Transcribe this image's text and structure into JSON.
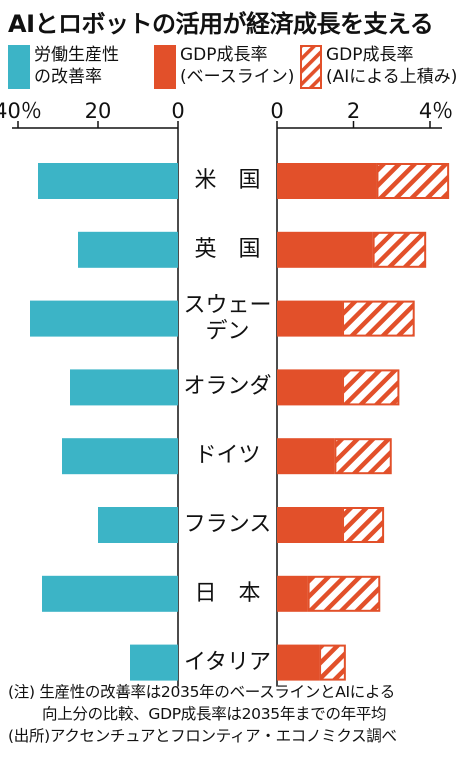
{
  "title": "AIとロボットの活用が経済成長を支える",
  "legend": {
    "labor_line1": "労働生産性",
    "labor_line2": "の改善率",
    "base_line1": "GDP成長率",
    "base_line2": "(ベースライン)",
    "ai_line1": "GDP成長率",
    "ai_line2": "(AIによる上積み)"
  },
  "colors": {
    "labor": "#3cb4c6",
    "gdp": "#e2502a",
    "text": "#111111"
  },
  "notes": {
    "line1": "(注) 生産性の改善率は2035年のベースラインとAIによる",
    "line2": "向上分の比較、GDP成長率は2035年までの年平均",
    "line3": "(出所)アクセンチュアとフロンティア・エコノミクス調べ"
  },
  "chart_data": {
    "type": "bar",
    "categories": [
      "米　国",
      "英　国",
      "スウェーデン",
      "オランダ",
      "ドイツ",
      "フランス",
      "日　本",
      "イタリア"
    ],
    "category_lines": [
      [
        "米　国"
      ],
      [
        "英　国"
      ],
      [
        "スウェー",
        "デン"
      ],
      [
        "オランダ"
      ],
      [
        "ドイツ"
      ],
      [
        "フランス"
      ],
      [
        "日　本"
      ],
      [
        "イタリア"
      ]
    ],
    "left_panel": {
      "series": [
        {
          "name": "労働生産性の改善率",
          "values": [
            35,
            25,
            37,
            27,
            29,
            20,
            34,
            12
          ]
        }
      ],
      "xlim": [
        0,
        40
      ],
      "ticks": [
        40,
        20,
        0
      ],
      "tick_labels": [
        "40％",
        "20",
        "0"
      ]
    },
    "right_panel": {
      "series": [
        {
          "name": "GDP成長率(ベースライン)",
          "values": [
            2.6,
            2.5,
            1.7,
            1.7,
            1.5,
            1.7,
            0.8,
            1.1
          ]
        },
        {
          "name": "GDP成長率(AIによる上積み)",
          "values": [
            1.9,
            1.4,
            1.9,
            1.5,
            1.5,
            1.1,
            1.9,
            0.7
          ]
        }
      ],
      "xlim": [
        0,
        4
      ],
      "ticks": [
        0,
        2,
        4
      ],
      "tick_labels": [
        "0",
        "2",
        "4％"
      ]
    }
  }
}
